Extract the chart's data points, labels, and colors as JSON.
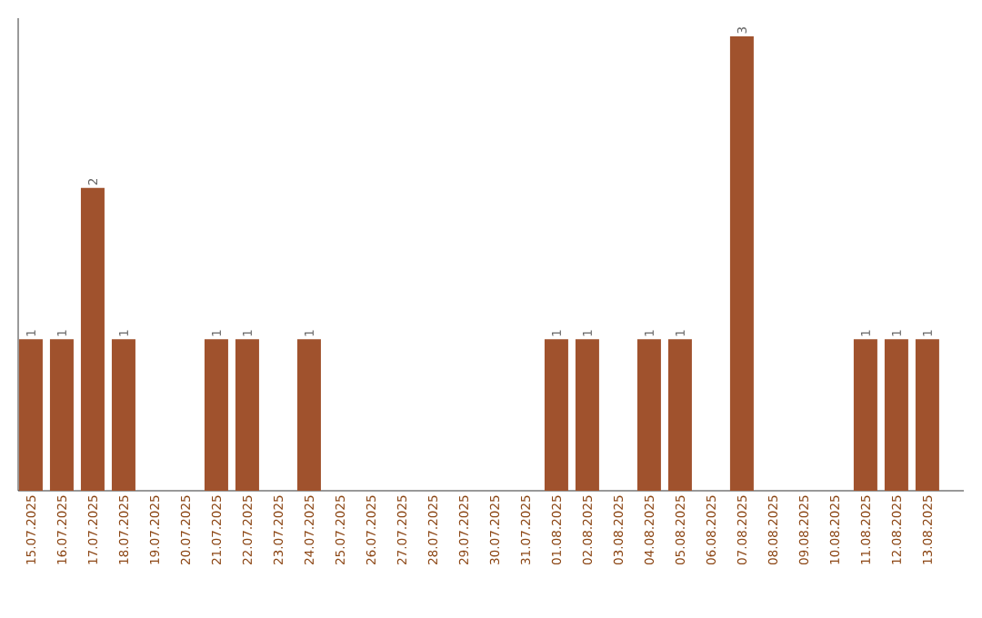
{
  "chart_data": {
    "type": "bar",
    "categories": [
      "15.07.2025",
      "16.07.2025",
      "17.07.2025",
      "18.07.2025",
      "19.07.2025",
      "20.07.2025",
      "21.07.2025",
      "22.07.2025",
      "23.07.2025",
      "24.07.2025",
      "25.07.2025",
      "26.07.2025",
      "27.07.2025",
      "28.07.2025",
      "29.07.2025",
      "30.07.2025",
      "31.07.2025",
      "01.08.2025",
      "02.08.2025",
      "03.08.2025",
      "04.08.2025",
      "05.08.2025",
      "06.08.2025",
      "07.08.2025",
      "08.08.2025",
      "09.08.2025",
      "10.08.2025",
      "11.08.2025",
      "12.08.2025",
      "13.08.2025"
    ],
    "values": [
      1,
      1,
      2,
      1,
      0,
      0,
      1,
      1,
      0,
      1,
      0,
      0,
      0,
      0,
      0,
      0,
      0,
      1,
      1,
      0,
      1,
      1,
      0,
      3,
      0,
      0,
      0,
      1,
      1,
      1
    ],
    "value_labels": [
      "1",
      "1",
      "2",
      "1",
      null,
      null,
      "1",
      "1",
      null,
      "1",
      null,
      null,
      null,
      null,
      null,
      null,
      null,
      "1",
      "1",
      null,
      "1",
      "1",
      null,
      "3",
      null,
      null,
      null,
      "1",
      "1",
      "1"
    ],
    "color": "#a0522d"
  }
}
